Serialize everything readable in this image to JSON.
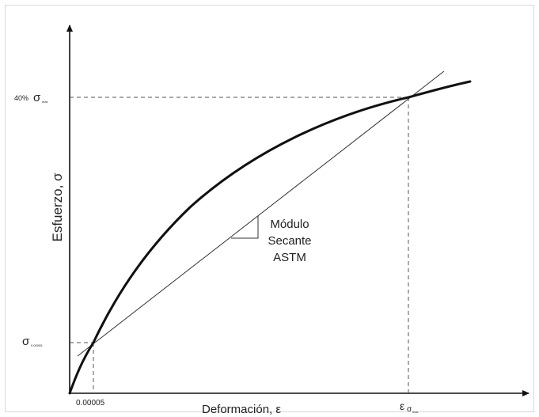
{
  "axes": {
    "y_label": "Esfuerzo, σ",
    "x_label": "Deformación, ε"
  },
  "annotations": {
    "y_top_prefix": "40%",
    "y_top_sigma": "σ",
    "y_top_sub": "max",
    "y_bottom_sigma": "σ",
    "y_bottom_sub": "0.00005",
    "x_left": "0.00005",
    "x_right_eps": "ε",
    "x_right_sigma": "σ",
    "x_right_sub": "max",
    "secant_line1": "Módulo",
    "secant_line2": "Secante",
    "secant_line3": "ASTM"
  },
  "colors": {
    "curve": "#111111",
    "axes": "#111111",
    "secant": "#333333",
    "dashed": "#555555"
  }
}
